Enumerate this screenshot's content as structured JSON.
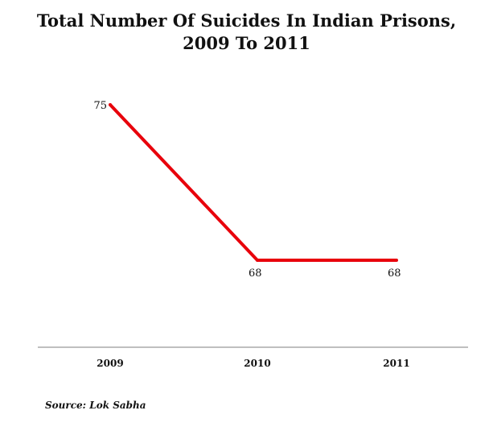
{
  "chart_data": {
    "type": "line",
    "title_lines": [
      "Total Number Of Suicides In Indian Prisons,",
      "2009 To 2011"
    ],
    "categories": [
      "2009",
      "2010",
      "2011"
    ],
    "series": [
      {
        "values": [
          75,
          68,
          68
        ],
        "data_labels": [
          "75",
          "68",
          "68"
        ],
        "color": "#e8000b"
      }
    ],
    "xlabel": "",
    "ylabel": "",
    "ylim": [
      63,
      77
    ],
    "grid": false,
    "legend": "none"
  },
  "source": "Source: Lok Sabha"
}
